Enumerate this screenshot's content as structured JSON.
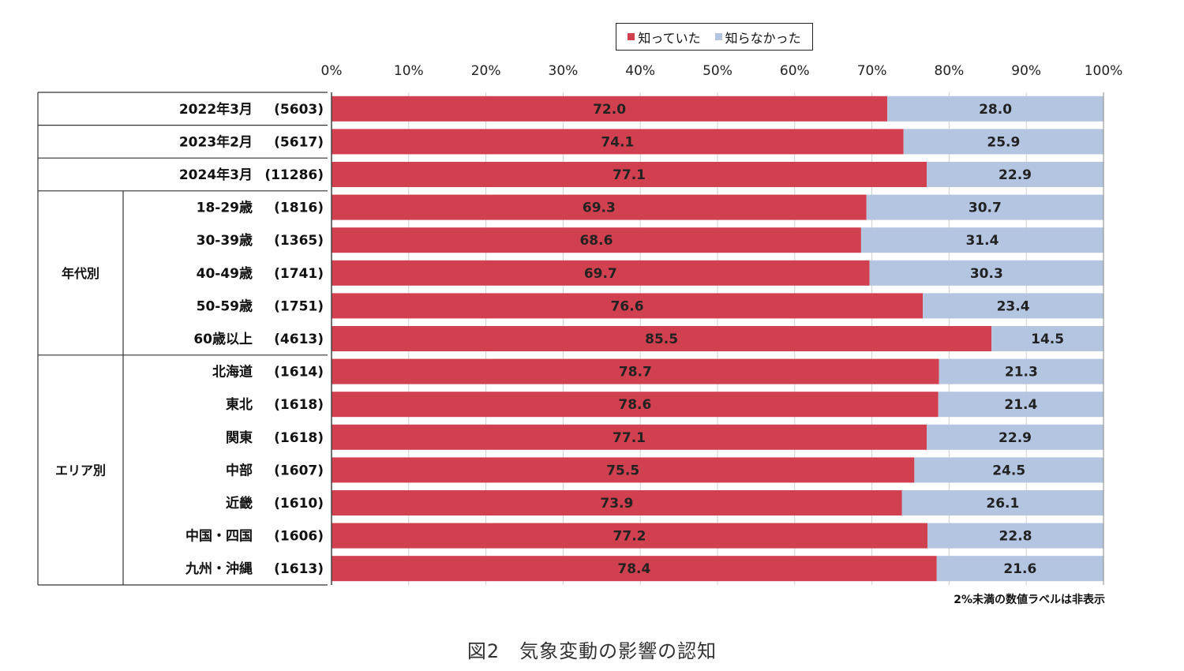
{
  "chart_data": {
    "type": "bar",
    "stacked": true,
    "orientation": "horizontal",
    "xlim": [
      0,
      100
    ],
    "x_ticks": [
      "0%",
      "10%",
      "20%",
      "30%",
      "40%",
      "50%",
      "60%",
      "70%",
      "80%",
      "90%",
      "100%"
    ],
    "legend_position": "top-center",
    "colors": {
      "known": "#d0404f",
      "unknown": "#b4c5e1"
    },
    "groups": [
      {
        "label": "",
        "start": 0,
        "count": 3
      },
      {
        "label": "年代別",
        "start": 3,
        "count": 5
      },
      {
        "label": "エリア別",
        "start": 8,
        "count": 7
      }
    ],
    "categories": [
      "2022年3月",
      "2023年2月",
      "2024年3月",
      "18-29歳",
      "30-39歳",
      "40-49歳",
      "50-59歳",
      "60歳以上",
      "北海道",
      "東北",
      "関東",
      "中部",
      "近畿",
      "中国・四国",
      "九州・沖縄"
    ],
    "sample_sizes": [
      "(5603)",
      "(5617)",
      "(11286)",
      "(1816)",
      "(1365)",
      "(1741)",
      "(1751)",
      "(4613)",
      "(1614)",
      "(1618)",
      "(1618)",
      "(1607)",
      "(1610)",
      "(1606)",
      "(1613)"
    ],
    "series": [
      {
        "name": "知っていた",
        "values": [
          72.0,
          74.1,
          77.1,
          69.3,
          68.6,
          69.7,
          76.6,
          85.5,
          78.7,
          78.6,
          77.1,
          75.5,
          73.9,
          77.2,
          78.4
        ],
        "labels": [
          "72.0",
          "74.1",
          "77.1",
          "69.3",
          "68.6",
          "69.7",
          "76.6",
          "85.5",
          "78.7",
          "78.6",
          "77.1",
          "75.5",
          "73.9",
          "77.2",
          "78.4"
        ]
      },
      {
        "name": "知らなかった",
        "values": [
          28.0,
          25.9,
          22.9,
          30.7,
          31.4,
          30.3,
          23.4,
          14.5,
          21.3,
          21.4,
          22.9,
          24.5,
          26.1,
          22.8,
          21.6
        ],
        "labels": [
          "28.0",
          "25.9",
          "22.9",
          "30.7",
          "31.4",
          "30.3",
          "23.4",
          "14.5",
          "21.3",
          "21.4",
          "22.9",
          "24.5",
          "26.1",
          "22.8",
          "21.6"
        ]
      }
    ],
    "annotation": "2%未満の数値ラベルは非表示"
  },
  "caption": "図2　気象変動の影響の認知"
}
